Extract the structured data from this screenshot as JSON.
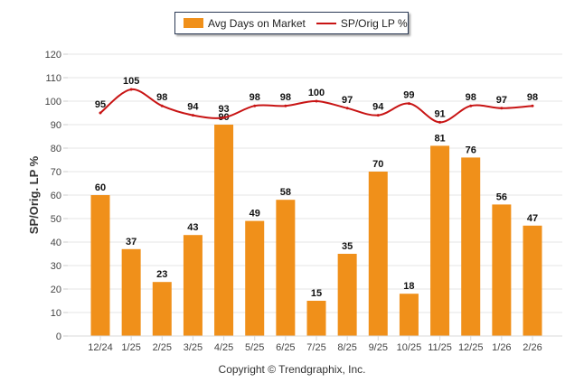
{
  "chart_data": {
    "type": "bar",
    "categories": [
      "12/24",
      "1/25",
      "2/25",
      "3/25",
      "4/25",
      "5/25",
      "6/25",
      "7/25",
      "8/25",
      "9/25",
      "10/25",
      "11/25",
      "12/25",
      "1/26",
      "2/26"
    ],
    "series": [
      {
        "name": "Avg Days on Market",
        "kind": "bar",
        "color": "#f0901a",
        "values": [
          60,
          37,
          23,
          43,
          90,
          49,
          58,
          15,
          35,
          70,
          18,
          81,
          76,
          56,
          47
        ]
      },
      {
        "name": "SP/Orig LP %",
        "kind": "line",
        "color": "#c81414",
        "values": [
          95,
          105,
          98,
          94,
          93,
          98,
          98,
          100,
          97,
          94,
          99,
          91,
          98,
          97,
          98
        ]
      }
    ],
    "title": "",
    "xlabel": "",
    "ylabel": "SP/Orig. LP %",
    "ylim": [
      0,
      120
    ],
    "yticks": [
      0,
      10,
      20,
      30,
      40,
      50,
      60,
      70,
      80,
      90,
      100,
      110,
      120
    ],
    "grid": true,
    "legend_position": "top-center",
    "footer": "Copyright © Trendgraphix, Inc."
  },
  "legend": {
    "bar_label": "Avg Days on Market",
    "line_label": "SP/Orig LP %"
  },
  "footer": {
    "copyright": "Copyright © Trendgraphix, Inc."
  }
}
